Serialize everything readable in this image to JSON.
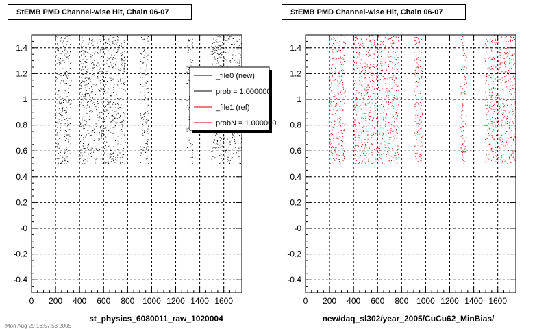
{
  "panels": [
    {
      "title": "StEMB PMD Channel-wise Hit, Chain 06-07",
      "xlabel": "st_physics_6080011_raw_1020004"
    },
    {
      "title": "StEMB PMD Channel-wise Hit, Chain 06-07",
      "xlabel": "new/daq_sl302/year_2005/CuCu62_MinBias/"
    }
  ],
  "legend": {
    "entries": [
      {
        "label": "_file0 (new)",
        "color": "#000000"
      },
      {
        "label": "prob = 1.000000",
        "color": "#000000"
      },
      {
        "label": "_file1 (ref)",
        "color": "#cc0000"
      },
      {
        "label": "probN = 1.000000",
        "color": "#cc0000"
      }
    ]
  },
  "footer_text": "Mon Aug 29 16:57:53 2005",
  "chart_data": [
    {
      "type": "scatter",
      "title": "StEMB PMD Channel-wise Hit, Chain 06-07",
      "xlabel": "st_physics_6080011_raw_1020004",
      "ylabel": "",
      "xlim": [
        0,
        1750
      ],
      "ylim": [
        -0.5,
        1.5
      ],
      "x_ticks": [
        0,
        200,
        400,
        600,
        800,
        1000,
        1200,
        1400,
        1600
      ],
      "x_tick_labels": [
        "0",
        "200",
        "400",
        "600",
        "800",
        "1000",
        "1200",
        "1400",
        "1600"
      ],
      "y_ticks": [
        -0.4,
        -0.2,
        0,
        0.2,
        0.4,
        0.6,
        0.8,
        1.0,
        1.2,
        1.4
      ],
      "y_tick_labels": [
        "-0.4",
        "-0.2",
        "-0",
        "0.2",
        "0.4",
        "0.6",
        "0.8",
        "1",
        "1.2",
        "1.4"
      ],
      "grid": true,
      "color": "#000000",
      "point_y_range": [
        0.5,
        1.5
      ],
      "x_bands": [
        [
          200,
          330
        ],
        [
          400,
          780
        ],
        [
          900,
          970
        ],
        [
          1290,
          1340
        ],
        [
          1490,
          1750
        ]
      ]
    },
    {
      "type": "scatter",
      "title": "StEMB PMD Channel-wise Hit, Chain 06-07",
      "xlabel": "new/daq_sl302/year_2005/CuCu62_MinBias/",
      "ylabel": "",
      "xlim": [
        0,
        1750
      ],
      "ylim": [
        -0.5,
        1.5
      ],
      "x_ticks": [
        0,
        200,
        400,
        600,
        800,
        1000,
        1200,
        1400,
        1600
      ],
      "x_tick_labels": [
        "0",
        "200",
        "400",
        "600",
        "800",
        "1000",
        "1200",
        "1400",
        "1600"
      ],
      "y_ticks": [
        -0.4,
        -0.2,
        0,
        0.2,
        0.4,
        0.6,
        0.8,
        1.0,
        1.2,
        1.4
      ],
      "y_tick_labels": [
        "-0.4",
        "-0.2",
        "-0",
        "0.2",
        "0.4",
        "0.6",
        "0.8",
        "1",
        "1.2",
        "1.4"
      ],
      "grid": true,
      "color": "#cc0000",
      "point_y_range": [
        0.5,
        1.5
      ],
      "x_bands": [
        [
          200,
          330
        ],
        [
          400,
          780
        ],
        [
          900,
          970
        ],
        [
          1290,
          1340
        ],
        [
          1490,
          1750
        ]
      ]
    }
  ]
}
